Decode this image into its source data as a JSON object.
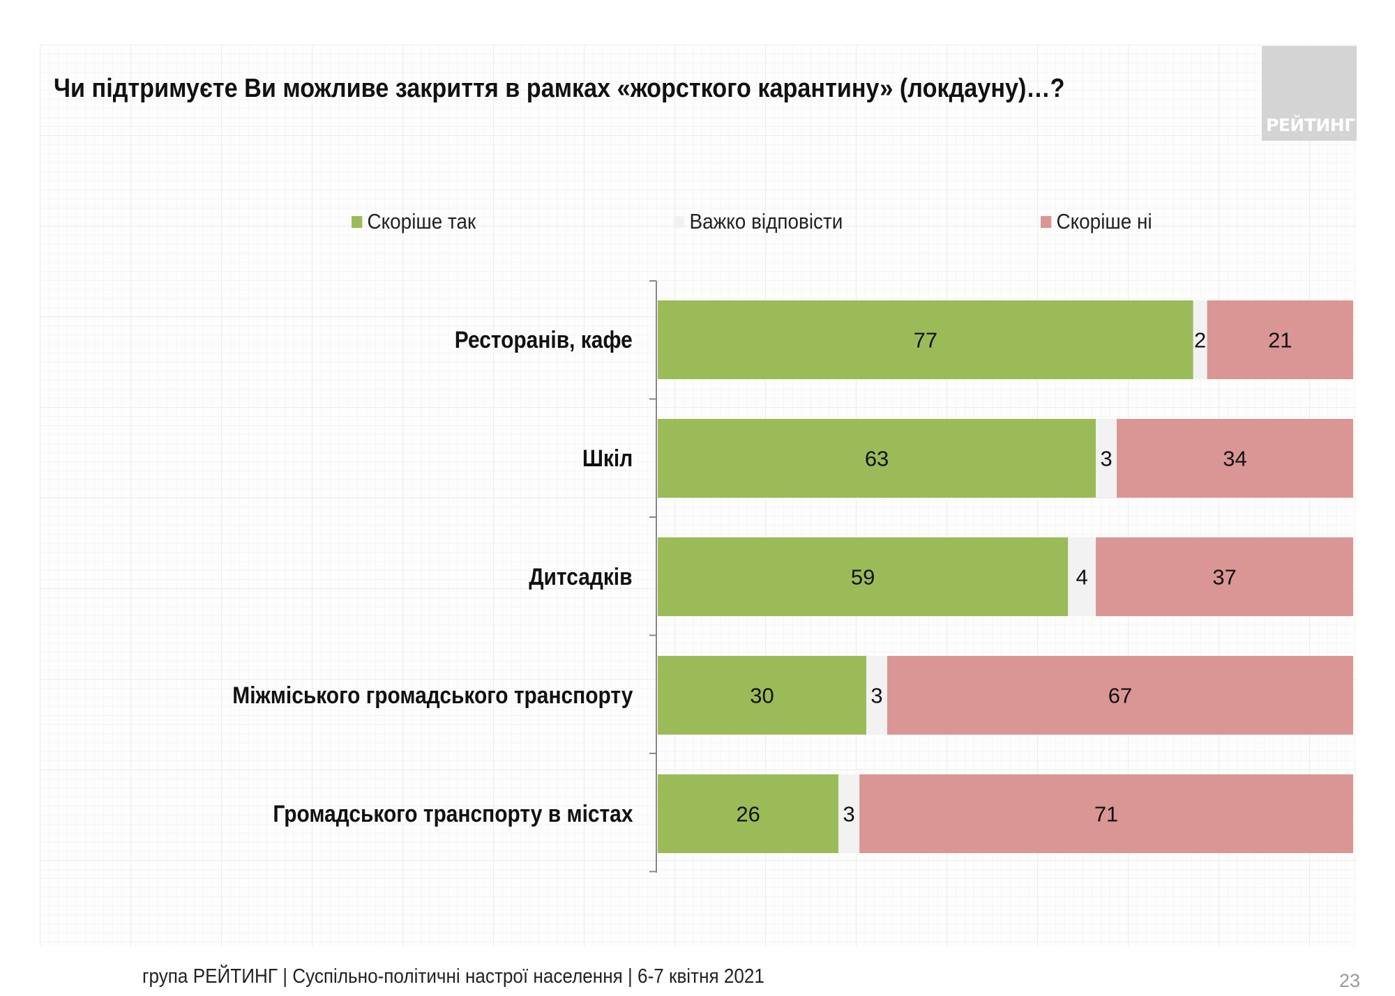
{
  "logo": "РЕЙТИНГ",
  "title": "Чи підтримуєте Ви можливе закриття в рамках «жорсткого карантину» (локдауну)…?",
  "footer": "група РЕЙТИНГ | Суспільно-політичні настрої населення | 6-7 квітня 2021",
  "page_number": "23",
  "chart_data": {
    "type": "bar",
    "orientation": "horizontal",
    "stacked": true,
    "title": "Чи підтримуєте Ви можливе закриття в рамках «жорсткого карантину» (локдауну)…?",
    "legend_position": "top",
    "categories": [
      "Ресторанів, кафе",
      "Шкіл",
      "Дитсадків",
      "Міжміського громадського транспорту",
      "Громадського транспорту в містах"
    ],
    "series": [
      {
        "name": "Скоріше так",
        "color": "#9bbb59",
        "values": [
          77,
          63,
          59,
          30,
          26
        ]
      },
      {
        "name": "Важко відповісти",
        "color": "#f2f2f2",
        "values": [
          2,
          3,
          4,
          3,
          3
        ]
      },
      {
        "name": "Скоріше ні",
        "color": "#d99694",
        "values": [
          21,
          34,
          37,
          67,
          71
        ]
      }
    ],
    "xlim": [
      0,
      100
    ]
  }
}
